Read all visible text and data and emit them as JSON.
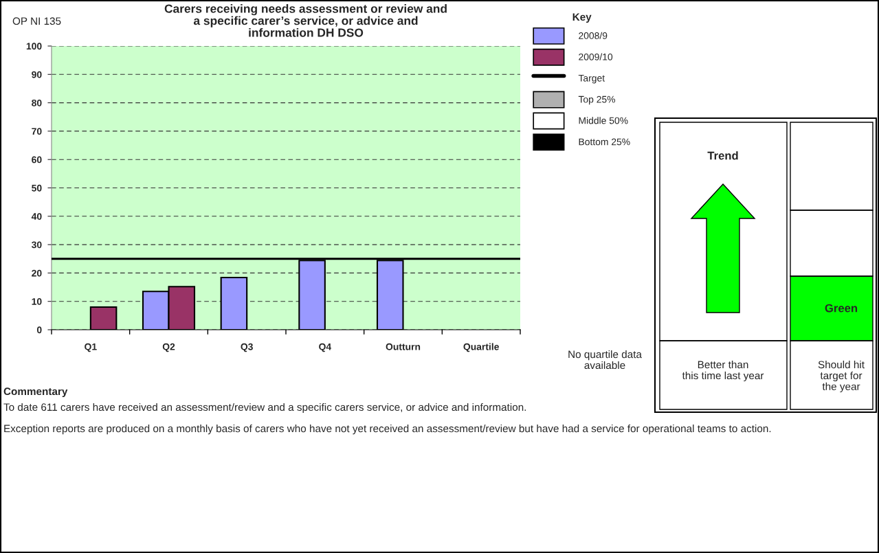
{
  "chart_data": {
    "type": "bar",
    "title": "Carers receiving needs assessment or review and\na specific carer’s service, or advice and\ninformation DH DSO",
    "categories": [
      "Q1",
      "Q2",
      "Q3",
      "Q4",
      "Outturn",
      "Quartile"
    ],
    "series": [
      {
        "name": "2008/9",
        "color": "#9999ff",
        "values": [
          null,
          13.5,
          18.4,
          24.4,
          24.4,
          null
        ]
      },
      {
        "name": "2009/10",
        "color": "#993366",
        "values": [
          8,
          15.2,
          null,
          null,
          null,
          null
        ]
      },
      {
        "name": "Top 25%",
        "color": "#b0b0b0",
        "values": [
          null,
          null,
          null,
          null,
          null,
          null
        ]
      },
      {
        "name": "Middle 50%",
        "color": "#ffffff",
        "values": [
          null,
          null,
          null,
          null,
          null,
          null
        ]
      },
      {
        "name": "Bottom 25%",
        "color": "#000000",
        "values": [
          null,
          null,
          null,
          null,
          null,
          null
        ]
      }
    ],
    "ref_lines": [
      {
        "axis": "y",
        "value": 25,
        "label": "Target",
        "color": "#000000",
        "line_style": "solid"
      }
    ],
    "ylim": [
      0,
      100
    ],
    "yticks": [
      0,
      10,
      20,
      30,
      40,
      50,
      60,
      70,
      80,
      90,
      100
    ],
    "grid": "y",
    "legend": "right",
    "legend_title": "Key",
    "annotations": [
      "OP NI 135",
      "No quartile data available",
      "Trend",
      "Better than this time last year",
      "Should hit target for the year",
      "Green",
      "Commentary",
      "To date 611 carers have received an assessment/review and a specific carers service, or advice and information.",
      "Exception reports are produced on a monthly basis of carers who have not yet received an assessment/review but have had a service for operational teams to action."
    ]
  }
}
